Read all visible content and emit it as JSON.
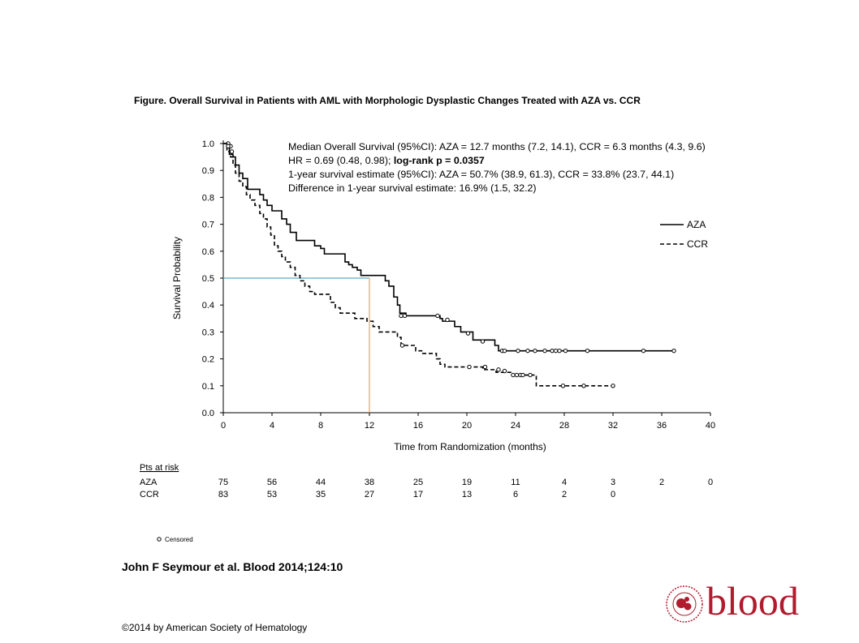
{
  "figure_title": "Figure.  Overall Survival in Patients with AML with Morphologic Dysplastic Changes Treated with AZA vs. CCR",
  "annotation_lines": [
    {
      "text": "Median Overall Survival (95%CI): AZA = 12.7 months (7.2, 14.1), CCR = 6.3 months (4.3, 9.6)",
      "bold_part": ""
    },
    {
      "text": "HR = 0.69 (0.48, 0.98); ",
      "bold_part": "log-rank p = 0.0357"
    },
    {
      "text": "1-year survival estimate (95%CI): AZA = 50.7% (38.9, 61.3), CCR = 33.8% (23.7, 44.1)",
      "bold_part": ""
    },
    {
      "text": "Difference in 1-year survival estimate: 16.9% (1.5, 32.2)",
      "bold_part": ""
    }
  ],
  "citation": "John F Seymour et al. Blood 2014;124:10",
  "copyright": "©2014 by American Society of Hematology",
  "logo": {
    "word": "blood",
    "color": "#b01c2e",
    "icon": "ash-seal-icon"
  },
  "chart_data": {
    "type": "line",
    "subtype": "kaplan-meier",
    "xlabel": "Time from Randomization (months)",
    "ylabel": "Survival Probability",
    "xlim": [
      0,
      40
    ],
    "ylim": [
      0,
      1.0
    ],
    "x_ticks": [
      0,
      4,
      8,
      12,
      16,
      20,
      24,
      28,
      32,
      36,
      40
    ],
    "y_ticks": [
      "0.0",
      "0.1",
      "0.2",
      "0.3",
      "0.4",
      "0.5",
      "0.6",
      "0.7",
      "0.8",
      "0.9",
      "1.0"
    ],
    "grid": false,
    "legend_position": "right",
    "median_reference": {
      "y": 0.5,
      "x": 12,
      "horizontal_color": "#5aaec8",
      "vertical_color": "#e3a36a"
    },
    "series": [
      {
        "name": "AZA",
        "style": "solid",
        "points": [
          [
            0,
            1.0
          ],
          [
            0.3,
            0.99
          ],
          [
            0.5,
            0.96
          ],
          [
            0.8,
            0.95
          ],
          [
            1.0,
            0.92
          ],
          [
            1.3,
            0.89
          ],
          [
            1.6,
            0.87
          ],
          [
            2.0,
            0.83
          ],
          [
            2.8,
            0.83
          ],
          [
            3.0,
            0.81
          ],
          [
            3.3,
            0.79
          ],
          [
            3.6,
            0.77
          ],
          [
            4.0,
            0.75
          ],
          [
            4.6,
            0.75
          ],
          [
            4.8,
            0.72
          ],
          [
            5.2,
            0.7
          ],
          [
            5.5,
            0.67
          ],
          [
            6.0,
            0.64
          ],
          [
            7.2,
            0.64
          ],
          [
            7.5,
            0.62
          ],
          [
            8.0,
            0.61
          ],
          [
            8.3,
            0.59
          ],
          [
            9.8,
            0.59
          ],
          [
            10.0,
            0.56
          ],
          [
            10.3,
            0.55
          ],
          [
            10.6,
            0.54
          ],
          [
            11.0,
            0.53
          ],
          [
            11.3,
            0.51
          ],
          [
            13.0,
            0.51
          ],
          [
            13.3,
            0.49
          ],
          [
            13.6,
            0.47
          ],
          [
            14.0,
            0.43
          ],
          [
            14.3,
            0.4
          ],
          [
            14.5,
            0.37
          ],
          [
            15.0,
            0.36
          ],
          [
            17.5,
            0.36
          ],
          [
            17.8,
            0.35
          ],
          [
            18.0,
            0.34
          ],
          [
            18.8,
            0.34
          ],
          [
            19.0,
            0.32
          ],
          [
            19.5,
            0.3
          ],
          [
            20.3,
            0.3
          ],
          [
            20.5,
            0.27
          ],
          [
            22.2,
            0.27
          ],
          [
            22.3,
            0.25
          ],
          [
            22.6,
            0.23
          ],
          [
            37.0,
            0.23
          ]
        ],
        "censored": [
          [
            0.4,
            1.0
          ],
          [
            0.6,
            0.99
          ],
          [
            14.6,
            0.36
          ],
          [
            14.9,
            0.36
          ],
          [
            17.6,
            0.36
          ],
          [
            18.4,
            0.345
          ],
          [
            20.1,
            0.295
          ],
          [
            21.3,
            0.265
          ],
          [
            22.9,
            0.23
          ],
          [
            23.1,
            0.23
          ],
          [
            24.2,
            0.23
          ],
          [
            25.0,
            0.23
          ],
          [
            25.6,
            0.23
          ],
          [
            26.4,
            0.23
          ],
          [
            27.0,
            0.23
          ],
          [
            27.3,
            0.23
          ],
          [
            27.6,
            0.23
          ],
          [
            28.1,
            0.23
          ],
          [
            29.9,
            0.23
          ],
          [
            34.5,
            0.23
          ],
          [
            37.0,
            0.23
          ]
        ]
      },
      {
        "name": "CCR",
        "style": "dashed",
        "points": [
          [
            0,
            1.0
          ],
          [
            0.3,
            0.97
          ],
          [
            0.6,
            0.95
          ],
          [
            0.8,
            0.92
          ],
          [
            1.0,
            0.89
          ],
          [
            1.3,
            0.86
          ],
          [
            1.6,
            0.84
          ],
          [
            1.9,
            0.81
          ],
          [
            2.2,
            0.79
          ],
          [
            2.6,
            0.77
          ],
          [
            3.0,
            0.74
          ],
          [
            3.3,
            0.72
          ],
          [
            3.6,
            0.69
          ],
          [
            3.9,
            0.66
          ],
          [
            4.2,
            0.62
          ],
          [
            4.5,
            0.6
          ],
          [
            4.8,
            0.58
          ],
          [
            5.1,
            0.56
          ],
          [
            5.5,
            0.54
          ],
          [
            5.9,
            0.51
          ],
          [
            6.3,
            0.49
          ],
          [
            6.7,
            0.47
          ],
          [
            7.1,
            0.45
          ],
          [
            7.5,
            0.44
          ],
          [
            8.5,
            0.44
          ],
          [
            8.8,
            0.41
          ],
          [
            9.2,
            0.39
          ],
          [
            9.6,
            0.37
          ],
          [
            10.4,
            0.37
          ],
          [
            10.8,
            0.35
          ],
          [
            11.5,
            0.35
          ],
          [
            11.8,
            0.34
          ],
          [
            12.3,
            0.32
          ],
          [
            12.8,
            0.3
          ],
          [
            14.0,
            0.3
          ],
          [
            14.3,
            0.28
          ],
          [
            14.6,
            0.25
          ],
          [
            15.5,
            0.25
          ],
          [
            15.8,
            0.23
          ],
          [
            16.3,
            0.22
          ],
          [
            17.3,
            0.22
          ],
          [
            17.5,
            0.2
          ],
          [
            17.8,
            0.18
          ],
          [
            18.2,
            0.17
          ],
          [
            21.0,
            0.17
          ],
          [
            21.3,
            0.16
          ],
          [
            22.0,
            0.16
          ],
          [
            22.4,
            0.15
          ],
          [
            23.3,
            0.15
          ],
          [
            23.6,
            0.14
          ],
          [
            25.5,
            0.14
          ],
          [
            25.7,
            0.1
          ],
          [
            32.0,
            0.1
          ]
        ],
        "censored": [
          [
            0.4,
            0.99
          ],
          [
            0.7,
            0.97
          ],
          [
            14.7,
            0.25
          ],
          [
            20.2,
            0.17
          ],
          [
            21.5,
            0.17
          ],
          [
            22.6,
            0.16
          ],
          [
            23.1,
            0.155
          ],
          [
            23.8,
            0.14
          ],
          [
            24.1,
            0.14
          ],
          [
            24.4,
            0.14
          ],
          [
            24.6,
            0.14
          ],
          [
            25.2,
            0.14
          ],
          [
            27.9,
            0.1
          ],
          [
            29.6,
            0.1
          ],
          [
            32.0,
            0.1
          ]
        ]
      }
    ],
    "censored_label": "Censored",
    "risk_table": {
      "title": "Pts at risk",
      "times": [
        0,
        4,
        8,
        12,
        16,
        20,
        24,
        28,
        32,
        36,
        40
      ],
      "rows": [
        {
          "label": "AZA",
          "values": [
            "75",
            "56",
            "44",
            "38",
            "25",
            "19",
            "11",
            "4",
            "3",
            "2",
            "0"
          ]
        },
        {
          "label": "CCR",
          "values": [
            "83",
            "53",
            "35",
            "27",
            "17",
            "13",
            "6",
            "2",
            "0",
            "",
            ""
          ]
        }
      ]
    }
  }
}
